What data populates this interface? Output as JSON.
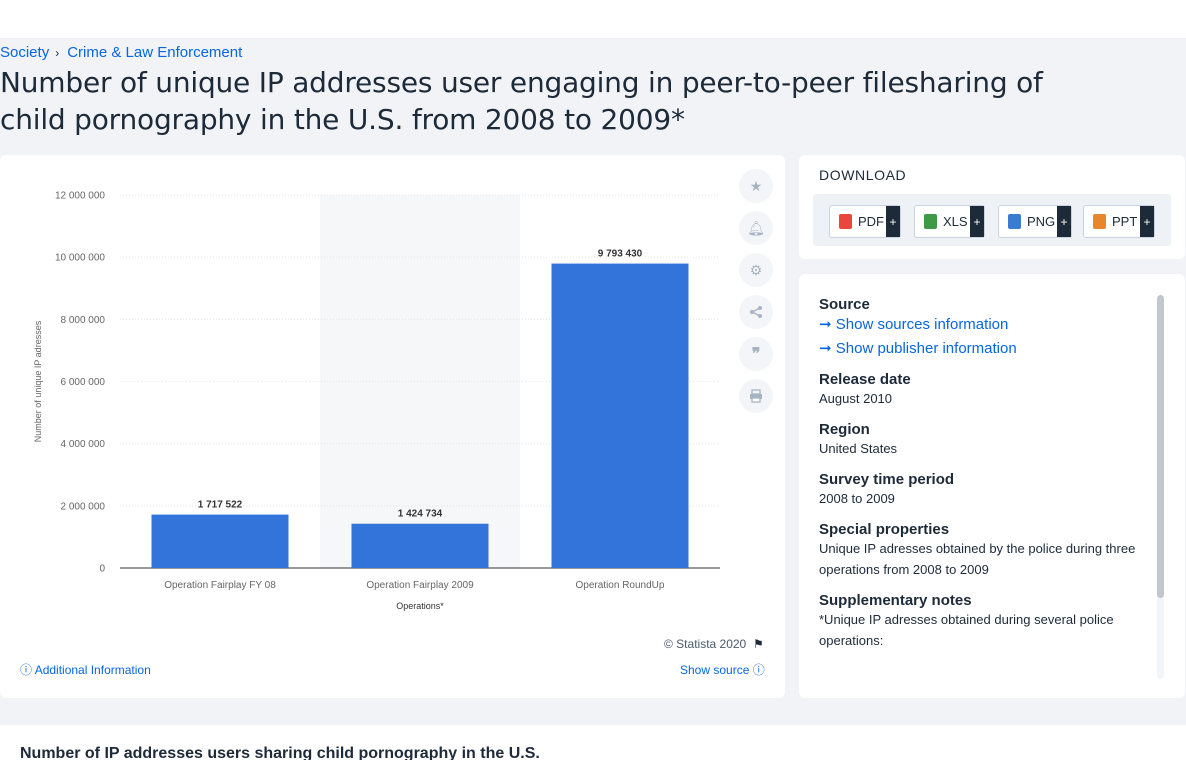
{
  "breadcrumb": {
    "items": [
      "Society",
      "Crime & Law Enforcement"
    ],
    "separator": "›"
  },
  "page_title": "Number of unique IP addresses user engaging in peer-to-peer filesharing of child pornography in the U.S. from 2008 to 2009*",
  "chart_data": {
    "type": "bar",
    "categories": [
      "Operation Fairplay FY 08",
      "Operation Fairplay 2009",
      "Operation RoundUp"
    ],
    "values": [
      1717522,
      1424734,
      9793430
    ],
    "value_labels": [
      "1 717 522",
      "1 424 734",
      "9 793 430"
    ],
    "yticks": [
      "0",
      "2 000 000",
      "4 000 000",
      "6 000 000",
      "8 000 000",
      "10 000 000",
      "12 000 000"
    ],
    "ylim": [
      0,
      12000000
    ],
    "xlabel": "Operations*",
    "ylabel": "Number of unique IP adresses",
    "grid": true,
    "bar_color": "#3274d9",
    "highlight_category": "Operation Fairplay 2009"
  },
  "tools": [
    "star-icon",
    "bell-icon",
    "gear-icon",
    "share-icon",
    "quote-icon",
    "print-icon"
  ],
  "footer": {
    "copyright": "© Statista 2020",
    "additional_info": "Additional Information",
    "show_source": "Show source"
  },
  "download": {
    "title": "DOWNLOAD",
    "buttons": [
      {
        "label": "PDF",
        "color": "#e9473b"
      },
      {
        "label": "XLS",
        "color": "#3d9b47"
      },
      {
        "label": "PNG",
        "color": "#3b7bd1"
      },
      {
        "label": "PPT",
        "color": "#e8862c"
      }
    ],
    "plus": "+"
  },
  "info": {
    "source_h": "Source",
    "show_sources": "Show sources information",
    "show_publisher": "Show publisher information",
    "release_h": "Release date",
    "release_v": "August 2010",
    "region_h": "Region",
    "region_v": "United States",
    "survey_h": "Survey time period",
    "survey_v": "2008 to 2009",
    "special_h": "Special properties",
    "special_v": "Unique IP adresses obtained by the police during three operations from 2008 to 2009",
    "supp_h": "Supplementary notes",
    "supp_v": "*Unique IP adresses obtained during several police operations:"
  },
  "related_title": "Number of IP addresses users sharing child pornography in the U.S."
}
